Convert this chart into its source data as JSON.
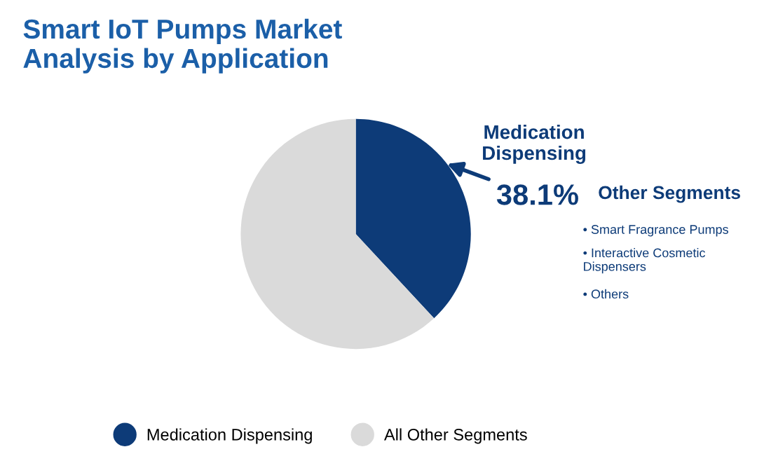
{
  "chart_data": {
    "type": "pie",
    "title": "Smart IoT Pumps Market\nAnalysis by Application",
    "categories": [
      "Medication Dispensing",
      "All Other Segments"
    ],
    "values": [
      38.1,
      61.9
    ],
    "colors": [
      "#0d3b78",
      "#dadada"
    ],
    "value_labels": [
      "38.1%",
      null
    ],
    "legend": "bottom",
    "annotations": [
      "Other Segments",
      "• Smart Fragrance Pumps",
      "• Interactive Cosmetic\nDispensers",
      "• Others"
    ]
  }
}
